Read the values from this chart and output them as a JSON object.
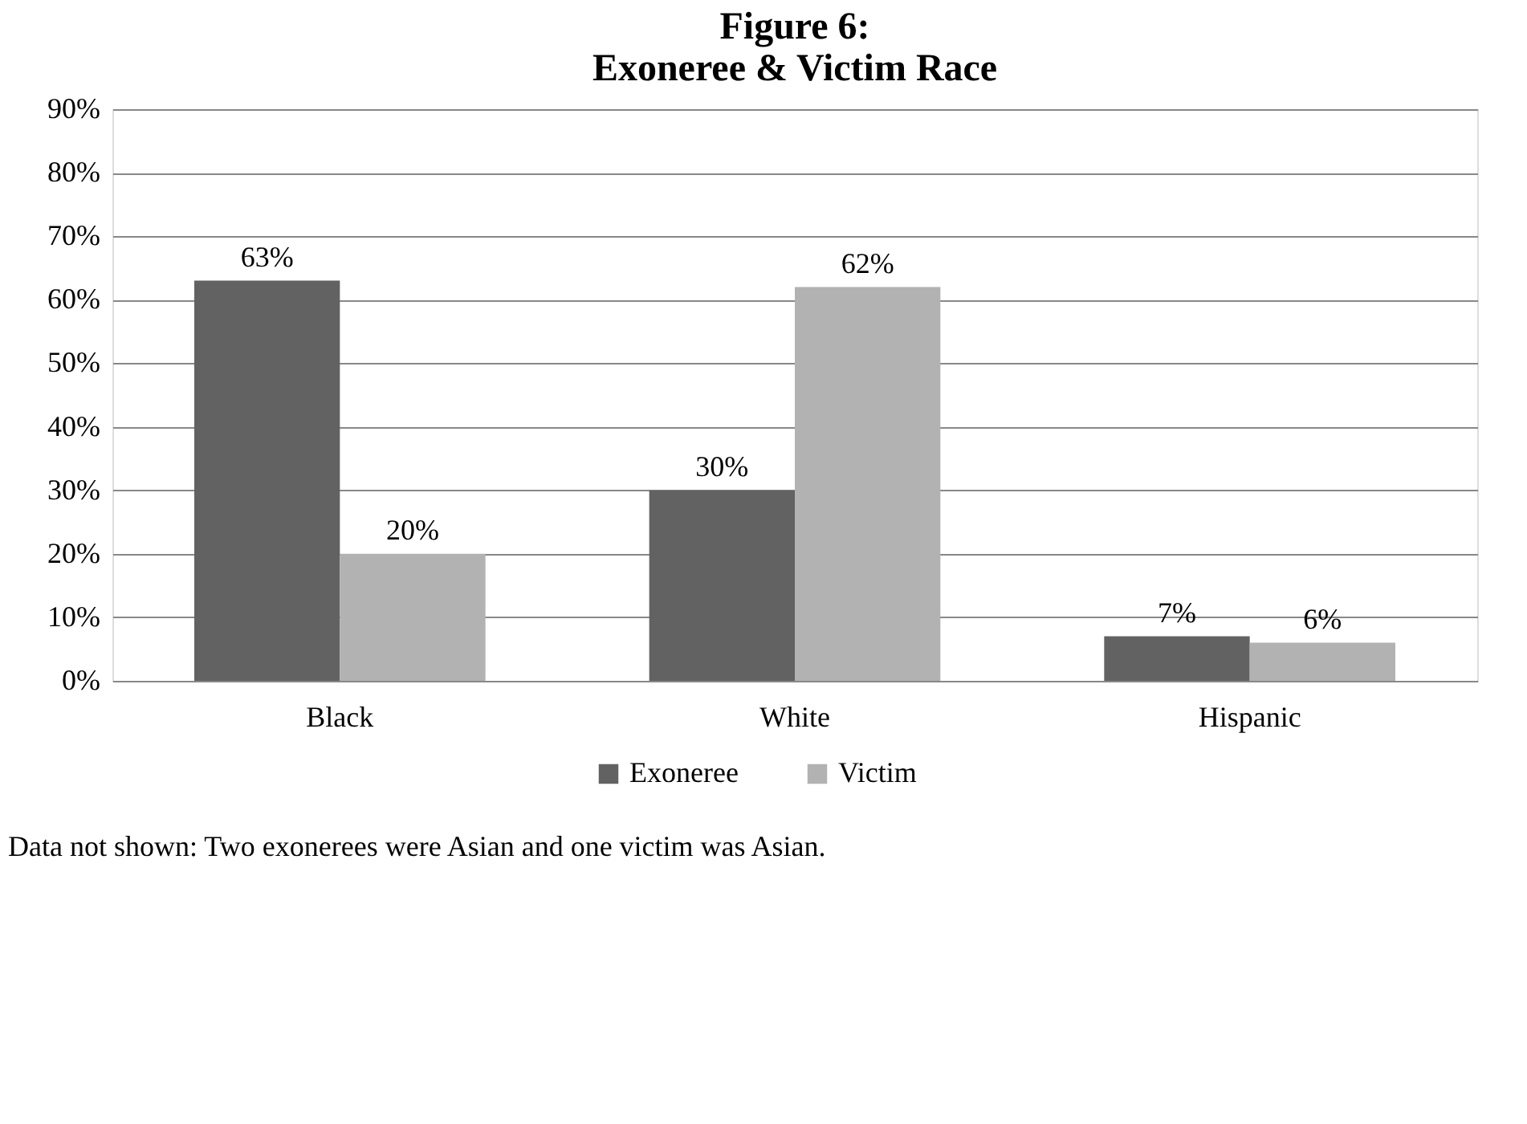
{
  "chart_data": {
    "type": "bar",
    "title": "Figure 6:\nExoneree & Victim Race",
    "categories": [
      "Black",
      "White",
      "Hispanic"
    ],
    "series": [
      {
        "name": "Exoneree",
        "color": "#626262",
        "values": [
          63,
          30,
          7
        ],
        "value_labels": [
          "63%",
          "30%",
          "7%"
        ]
      },
      {
        "name": "Victim",
        "color": "#b2b2b2",
        "values": [
          20,
          62,
          6
        ],
        "value_labels": [
          "20%",
          "62%",
          "6%"
        ]
      }
    ],
    "ylim": [
      0,
      90
    ],
    "yticks": [
      {
        "value": 0,
        "label": "0%"
      },
      {
        "value": 10,
        "label": "10%"
      },
      {
        "value": 20,
        "label": "20%"
      },
      {
        "value": 30,
        "label": "30%"
      },
      {
        "value": 40,
        "label": "40%"
      },
      {
        "value": 50,
        "label": "50%"
      },
      {
        "value": 60,
        "label": "60%"
      },
      {
        "value": 70,
        "label": "70%"
      },
      {
        "value": 80,
        "label": "80%"
      },
      {
        "value": 90,
        "label": "90%"
      }
    ],
    "grid": "y",
    "legend": "bottom",
    "annotations": [
      "Data not shown: Two exonerees were Asian and one victim was Asian."
    ]
  }
}
